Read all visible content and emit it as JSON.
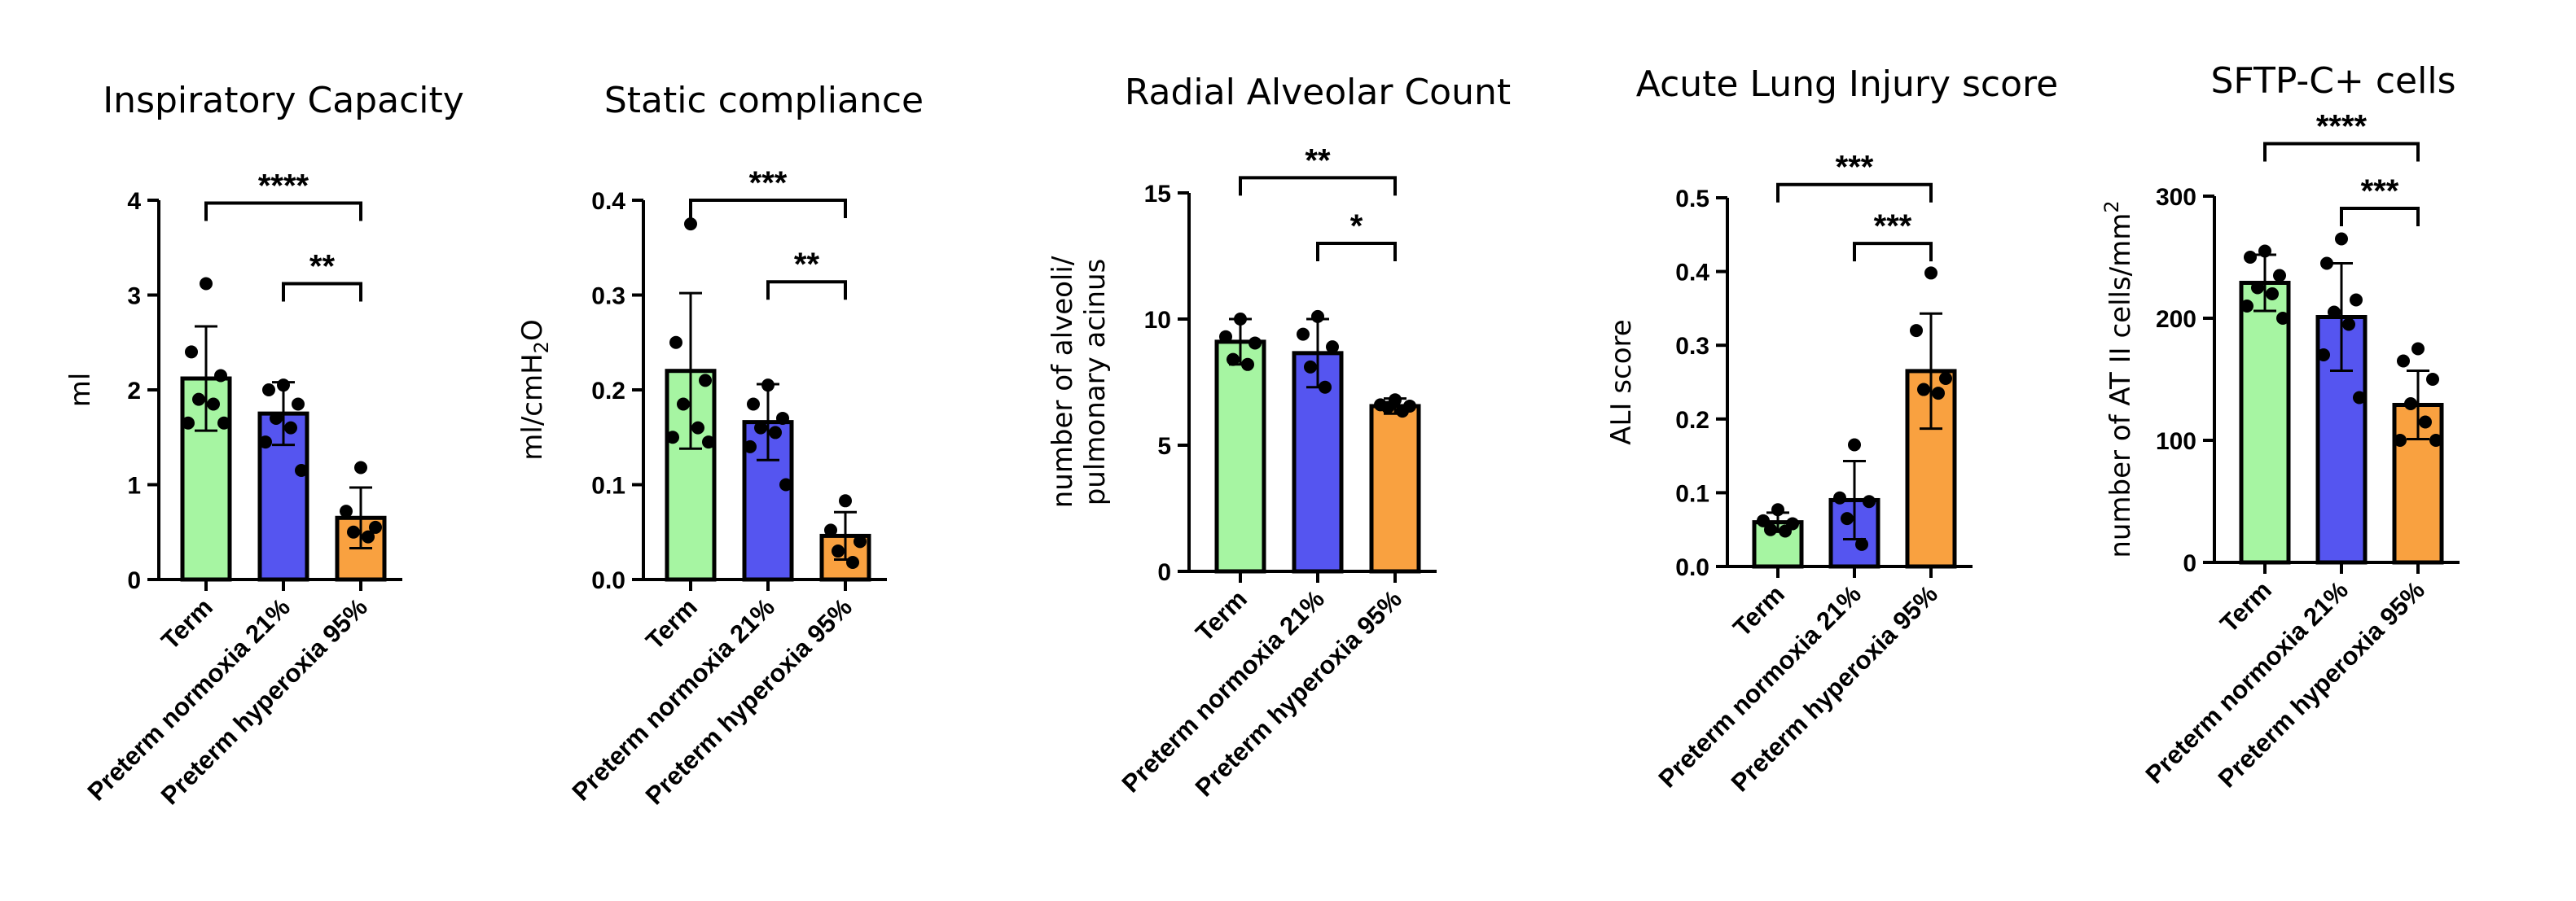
{
  "chart_data": [
    {
      "type": "bar",
      "title": "Inspiratory Capacity",
      "ylabel": "ml",
      "ylabel_sub": "",
      "ylabel_sub_after": "",
      "ylim": [
        0,
        4
      ],
      "yticks": [
        0,
        1,
        2,
        3,
        4
      ],
      "ytick_labels": [
        "0",
        "1",
        "2",
        "3",
        "4"
      ],
      "categories": [
        "Term",
        "Preterm normoxia 21%",
        "Preterm hyperoxia 95%"
      ],
      "colors": [
        "#a6f5a2",
        "#5555f0",
        "#f9a140"
      ],
      "values": [
        2.12,
        1.75,
        0.65
      ],
      "errors": [
        0.55,
        0.33,
        0.32
      ],
      "points": [
        [
          3.12,
          2.4,
          2.15,
          1.9,
          1.85,
          1.65,
          1.65
        ],
        [
          2.05,
          2.0,
          1.85,
          1.7,
          1.6,
          1.45,
          1.15
        ],
        [
          1.18,
          0.72,
          0.55,
          0.5,
          0.45
        ]
      ],
      "comparisons": [
        {
          "from": 0,
          "to": 2,
          "label": "****",
          "y": 3.97
        },
        {
          "from": 1,
          "to": 2,
          "label": "**",
          "y": 3.12
        }
      ]
    },
    {
      "type": "bar",
      "title": "Static compliance",
      "ylabel": "ml/cmH",
      "ylabel_sub": "2",
      "ylabel_sub_after": "O",
      "ylim": [
        0,
        0.4
      ],
      "yticks": [
        0,
        0.1,
        0.2,
        0.3,
        0.4
      ],
      "ytick_labels": [
        "0.0",
        "0.1",
        "0.2",
        "0.3",
        "0.4"
      ],
      "categories": [
        "Term",
        "Preterm normoxia 21%",
        "Preterm hyperoxia 95%"
      ],
      "colors": [
        "#a6f5a2",
        "#5555f0",
        "#f9a140"
      ],
      "values": [
        0.22,
        0.166,
        0.046
      ],
      "errors": [
        0.082,
        0.04,
        0.025
      ],
      "points": [
        [
          0.375,
          0.25,
          0.21,
          0.185,
          0.16,
          0.15,
          0.145
        ],
        [
          0.205,
          0.185,
          0.17,
          0.16,
          0.155,
          0.14,
          0.1
        ],
        [
          0.083,
          0.052,
          0.04,
          0.03,
          0.018
        ]
      ],
      "comparisons": [
        {
          "from": 0,
          "to": 2,
          "label": "***",
          "y": 0.4
        },
        {
          "from": 1,
          "to": 2,
          "label": "**",
          "y": 0.314
        }
      ]
    },
    {
      "type": "bar",
      "title": "Radial Alveolar Count",
      "ylabel": "number of alveoli/\npulmonary acinus",
      "ylabel_sub": "",
      "ylabel_sub_after": "",
      "ylim": [
        0,
        15
      ],
      "yticks": [
        0,
        5,
        10,
        15
      ],
      "ytick_labels": [
        "0",
        "5",
        "10",
        "15"
      ],
      "categories": [
        "Term",
        "Preterm normoxia 21%",
        "Preterm hyperoxia 95%"
      ],
      "colors": [
        "#a6f5a2",
        "#5555f0",
        "#f9a140"
      ],
      "values": [
        9.1,
        8.65,
        6.55
      ],
      "errors": [
        0.9,
        1.35,
        0.3
      ],
      "points": [
        [
          10.0,
          9.3,
          9.05,
          8.4,
          8.2
        ],
        [
          10.1,
          9.4,
          8.9,
          8.1,
          7.3
        ],
        [
          6.8,
          6.6,
          6.55,
          6.5,
          6.35
        ]
      ],
      "comparisons": [
        {
          "from": 0,
          "to": 2,
          "label": "**",
          "y": 15.6
        },
        {
          "from": 1,
          "to": 2,
          "label": "*",
          "y": 13.0
        }
      ]
    },
    {
      "type": "bar",
      "title": "Acute Lung Injury score",
      "ylabel": "ALI score",
      "ylabel_sub": "",
      "ylabel_sub_after": "",
      "ylim": [
        0,
        0.5
      ],
      "yticks": [
        0,
        0.1,
        0.2,
        0.3,
        0.4,
        0.5
      ],
      "ytick_labels": [
        "0.0",
        "0.1",
        "0.2",
        "0.3",
        "0.4",
        "0.5"
      ],
      "categories": [
        "Term",
        "Preterm normoxia 21%",
        "Preterm hyperoxia 95%"
      ],
      "colors": [
        "#a6f5a2",
        "#5555f0",
        "#f9a140"
      ],
      "values": [
        0.06,
        0.09,
        0.265
      ],
      "errors": [
        0.013,
        0.053,
        0.078
      ],
      "points": [
        [
          0.077,
          0.062,
          0.058,
          0.05,
          0.048
        ],
        [
          0.165,
          0.093,
          0.088,
          0.065,
          0.03
        ],
        [
          0.398,
          0.32,
          0.255,
          0.24,
          0.235
        ]
      ],
      "comparisons": [
        {
          "from": 0,
          "to": 2,
          "label": "***",
          "y": 0.518
        },
        {
          "from": 1,
          "to": 2,
          "label": "***",
          "y": 0.438
        }
      ]
    },
    {
      "type": "bar",
      "title": "SFTP-C+ cells",
      "ylabel": "number of AT II cells/mm",
      "ylabel_sub": "",
      "ylabel_sup": "2",
      "ylabel_sub_after": "",
      "ylim": [
        0,
        300
      ],
      "yticks": [
        0,
        100,
        200,
        300
      ],
      "ytick_labels": [
        "0",
        "100",
        "200",
        "300"
      ],
      "categories": [
        "Term",
        "Preterm normoxia 21%",
        "Preterm hyperoxia 95%"
      ],
      "colors": [
        "#a6f5a2",
        "#5555f0",
        "#f9a140"
      ],
      "values": [
        229,
        201,
        129
      ],
      "errors": [
        23,
        44,
        28
      ],
      "points": [
        [
          255,
          250,
          235,
          225,
          220,
          210,
          200
        ],
        [
          265,
          245,
          215,
          205,
          195,
          170,
          135
        ],
        [
          175,
          165,
          150,
          130,
          115,
          100,
          100
        ]
      ],
      "comparisons": [
        {
          "from": 0,
          "to": 2,
          "label": "****",
          "y": 343
        },
        {
          "from": 1,
          "to": 2,
          "label": "***",
          "y": 290
        }
      ]
    }
  ]
}
